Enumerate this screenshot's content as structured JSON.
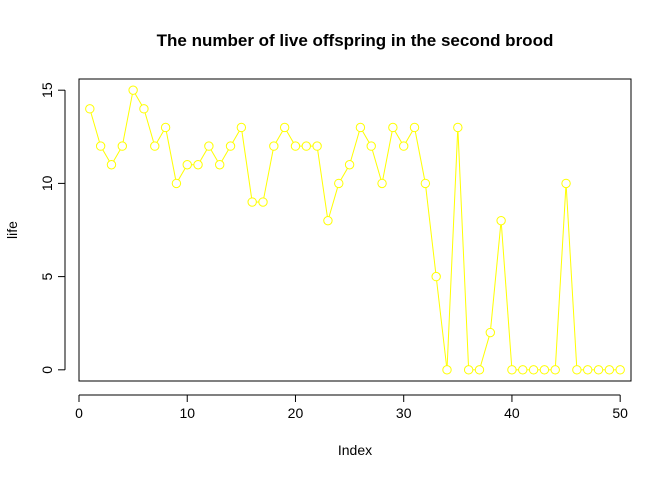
{
  "chart_data": {
    "type": "line",
    "title": "The number of live offspring in the second brood",
    "xlabel": "Index",
    "ylabel": "life",
    "xlim": [
      0,
      51
    ],
    "ylim": [
      -0.6,
      15.6
    ],
    "xticks": [
      0,
      10,
      20,
      30,
      40,
      50
    ],
    "yticks": [
      0,
      5,
      10,
      15
    ],
    "grid": false,
    "marker": "open-circle",
    "series": [
      {
        "color": "#ffff00",
        "x": [
          1,
          2,
          3,
          4,
          5,
          6,
          7,
          8,
          9,
          10,
          11,
          12,
          13,
          14,
          15,
          16,
          17,
          18,
          19,
          20,
          21,
          22,
          23,
          24,
          25,
          26,
          27,
          28,
          29,
          30,
          31,
          32,
          33,
          34,
          35,
          36,
          37,
          38,
          39,
          40,
          41,
          42,
          43,
          44,
          45,
          46,
          47,
          48,
          49,
          50
        ],
        "values": [
          14,
          12,
          11,
          12,
          15,
          14,
          12,
          13,
          10,
          11,
          11,
          12,
          11,
          12,
          13,
          9,
          9,
          12,
          13,
          12,
          12,
          12,
          8,
          10,
          11,
          13,
          12,
          10,
          13,
          12,
          13,
          10,
          5,
          0,
          13,
          0,
          0,
          2,
          8,
          0,
          0,
          0,
          0,
          0,
          10,
          0,
          0,
          0,
          0,
          0
        ]
      }
    ]
  }
}
